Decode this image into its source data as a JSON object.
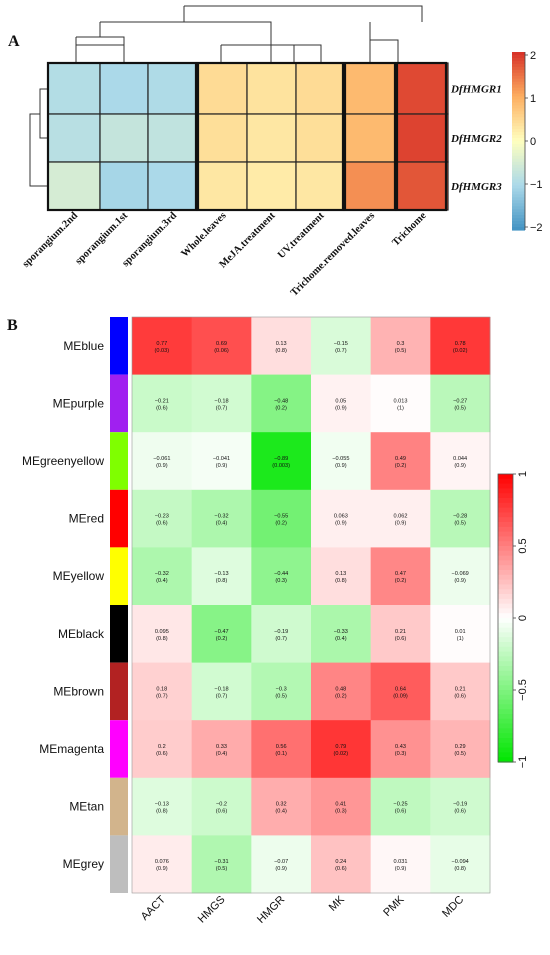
{
  "panels": {
    "a": "A",
    "b": "B"
  },
  "chart_data": [
    {
      "type": "heatmap",
      "genes": [
        "DfHMGR1",
        "DfHMGR2",
        "DfHMGR3"
      ],
      "samples": [
        "sporangium.2nd",
        "sporangium.1st",
        "sporangium.3rd",
        "Whole.leaves",
        "MeJA.treatment",
        "UV.treatment",
        "Trichome.removed.leaves",
        "Trichome"
      ],
      "values": [
        [
          -0.9,
          -1.0,
          -0.95,
          0.45,
          0.35,
          0.45,
          0.85,
          1.8
        ],
        [
          -0.85,
          -0.7,
          -0.75,
          0.4,
          0.3,
          0.4,
          0.85,
          1.85
        ],
        [
          -0.5,
          -1.05,
          -1.0,
          0.3,
          0.25,
          0.3,
          1.25,
          1.7
        ]
      ],
      "scale_ticks": [
        "2",
        "1",
        "0",
        "−1",
        "−2"
      ],
      "zlim": [
        -2,
        2
      ]
    },
    {
      "type": "heatmap",
      "rows": [
        "MEblue",
        "MEpurple",
        "MEgreenyellow",
        "MEred",
        "MEyellow",
        "MEblack",
        "MEbrown",
        "MEmagenta",
        "MEtan",
        "MEgrey"
      ],
      "row_colors": [
        "#0000ff",
        "#a020f0",
        "#7fff00",
        "#ff0000",
        "#ffff00",
        "#000000",
        "#b22222",
        "#ff00ff",
        "#d2b48c",
        "#bebebe"
      ],
      "columns": [
        "AACT",
        "HMGS",
        "HMGR",
        "MK",
        "PMK",
        "MDC"
      ],
      "values": [
        [
          0.77,
          0.69,
          0.13,
          -0.15,
          0.3,
          0.78
        ],
        [
          -0.21,
          -0.18,
          -0.48,
          0.05,
          0.013,
          -0.27
        ],
        [
          -0.061,
          -0.041,
          -0.89,
          -0.055,
          0.49,
          0.044
        ],
        [
          -0.23,
          -0.32,
          -0.55,
          0.063,
          0.062,
          -0.28
        ],
        [
          -0.32,
          -0.13,
          -0.44,
          0.13,
          0.47,
          -0.069
        ],
        [
          0.095,
          -0.47,
          -0.19,
          -0.33,
          0.21,
          0.01
        ],
        [
          0.18,
          -0.18,
          -0.3,
          0.48,
          0.64,
          0.21
        ],
        [
          0.2,
          0.33,
          0.56,
          0.79,
          0.43,
          0.29
        ],
        [
          -0.13,
          -0.2,
          0.32,
          0.41,
          -0.25,
          -0.19
        ],
        [
          0.076,
          -0.31,
          -0.07,
          0.24,
          0.031,
          -0.094
        ]
      ],
      "cell_text": [
        [
          [
            "0.77",
            "(0.03)"
          ],
          [
            "0.69",
            "(0.06)"
          ],
          [
            "0.13",
            "(0.8)"
          ],
          [
            "−0.15",
            "(0.7)"
          ],
          [
            "0.3",
            "(0.5)"
          ],
          [
            "0.78",
            "(0.02)"
          ]
        ],
        [
          [
            "−0.21",
            "(0.6)"
          ],
          [
            "−0.18",
            "(0.7)"
          ],
          [
            "−0.48",
            "(0.2)"
          ],
          [
            "0.05",
            "(0.9)"
          ],
          [
            "0.013",
            "(1)"
          ],
          [
            "−0.27",
            "(0.5)"
          ]
        ],
        [
          [
            "−0.061",
            "(0.9)"
          ],
          [
            "−0.041",
            "(0.9)"
          ],
          [
            "−0.89",
            "(0.003)"
          ],
          [
            "−0.055",
            "(0.9)"
          ],
          [
            "0.49",
            "(0.2)"
          ],
          [
            "0.044",
            "(0.9)"
          ]
        ],
        [
          [
            "−0.23",
            "(0.6)"
          ],
          [
            "−0.32",
            "(0.4)"
          ],
          [
            "−0.55",
            "(0.2)"
          ],
          [
            "0.063",
            "(0.9)"
          ],
          [
            "0.062",
            "(0.9)"
          ],
          [
            "−0.28",
            "(0.5)"
          ]
        ],
        [
          [
            "−0.32",
            "(0.4)"
          ],
          [
            "−0.13",
            "(0.8)"
          ],
          [
            "−0.44",
            "(0.3)"
          ],
          [
            "0.13",
            "(0.8)"
          ],
          [
            "0.47",
            "(0.2)"
          ],
          [
            "−0.069",
            "(0.9)"
          ]
        ],
        [
          [
            "0.095",
            "(0.8)"
          ],
          [
            "−0.47",
            "(0.2)"
          ],
          [
            "−0.19",
            "(0.7)"
          ],
          [
            "−0.33",
            "(0.4)"
          ],
          [
            "0.21",
            "(0.6)"
          ],
          [
            "0.01",
            "(1)"
          ]
        ],
        [
          [
            "0.18",
            "(0.7)"
          ],
          [
            "−0.18",
            "(0.7)"
          ],
          [
            "−0.3",
            "(0.5)"
          ],
          [
            "0.48",
            "(0.2)"
          ],
          [
            "0.64",
            "(0.09)"
          ],
          [
            "0.21",
            "(0.6)"
          ]
        ],
        [
          [
            "0.2",
            "(0.6)"
          ],
          [
            "0.33",
            "(0.4)"
          ],
          [
            "0.56",
            "(0.1)"
          ],
          [
            "0.79",
            "(0.02)"
          ],
          [
            "0.43",
            "(0.3)"
          ],
          [
            "0.29",
            "(0.5)"
          ]
        ],
        [
          [
            "−0.13",
            "(0.8)"
          ],
          [
            "−0.2",
            "(0.6)"
          ],
          [
            "0.32",
            "(0.4)"
          ],
          [
            "0.41",
            "(0.3)"
          ],
          [
            "−0.25",
            "(0.6)"
          ],
          [
            "−0.19",
            "(0.6)"
          ]
        ],
        [
          [
            "0.076",
            "(0.9)"
          ],
          [
            "−0.31",
            "(0.5)"
          ],
          [
            "−0.07",
            "(0.9)"
          ],
          [
            "0.24",
            "(0.6)"
          ],
          [
            "0.031",
            "(0.9)"
          ],
          [
            "−0.094",
            "(0.8)"
          ]
        ]
      ],
      "scale_ticks": [
        "1",
        "0.5",
        "0",
        "−0.5",
        "−1"
      ],
      "zlim": [
        -1,
        1
      ]
    }
  ]
}
